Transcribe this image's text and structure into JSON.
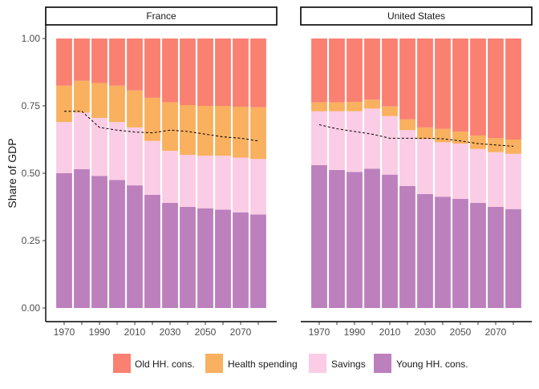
{
  "chart_data": {
    "type": "bar",
    "stacked": true,
    "facets": [
      "France",
      "United States"
    ],
    "ylabel": "Share of GDP",
    "xlabel": "",
    "ylim": [
      0,
      1
    ],
    "y_ticks": [
      "0.00",
      "0.25",
      "0.50",
      "0.75",
      "1.00"
    ],
    "y_tick_values": [
      0,
      0.25,
      0.5,
      0.75,
      1.0
    ],
    "x_ticks": [
      "1970",
      "1990",
      "2010",
      "2030",
      "2050",
      "2070"
    ],
    "x_tick_values": [
      1970,
      1990,
      2010,
      2030,
      2050,
      2070
    ],
    "x_minor_ticks": [
      1980,
      2000,
      2020,
      2040,
      2060,
      2080
    ],
    "categories": [
      1970,
      1980,
      1990,
      2000,
      2010,
      2020,
      2030,
      2040,
      2050,
      2060,
      2070,
      2080
    ],
    "legend_position": "bottom",
    "grid": false,
    "legend": [
      {
        "name": "Old HH. cons.",
        "color": "#FA8072"
      },
      {
        "name": "Health spending",
        "color": "#F9B05F"
      },
      {
        "name": "Savings",
        "color": "#FBCCE5"
      },
      {
        "name": "Young HH. cons.",
        "color": "#BC80BD"
      }
    ],
    "panels": [
      {
        "name": "France",
        "stack_tops": {
          "Young HH. cons.": [
            0.5,
            0.515,
            0.49,
            0.475,
            0.455,
            0.42,
            0.39,
            0.375,
            0.37,
            0.365,
            0.355,
            0.347
          ],
          "Savings": [
            0.69,
            0.725,
            0.705,
            0.69,
            0.67,
            0.62,
            0.583,
            0.568,
            0.565,
            0.565,
            0.558,
            0.553
          ],
          "Health spending": [
            0.825,
            0.843,
            0.835,
            0.825,
            0.807,
            0.78,
            0.763,
            0.753,
            0.75,
            0.75,
            0.747,
            0.745
          ],
          "Old HH. cons.": [
            1,
            1,
            1,
            1,
            1,
            1,
            1,
            1,
            1,
            1,
            1,
            1
          ]
        },
        "dashed_line": [
          0.73,
          0.73,
          0.67,
          0.66,
          0.653,
          0.65,
          0.66,
          0.655,
          0.645,
          0.635,
          0.63,
          0.62
        ]
      },
      {
        "name": "United States",
        "stack_tops": {
          "Young HH. cons.": [
            0.53,
            0.512,
            0.505,
            0.517,
            0.495,
            0.453,
            0.423,
            0.413,
            0.405,
            0.39,
            0.375,
            0.367
          ],
          "Savings": [
            0.73,
            0.73,
            0.73,
            0.74,
            0.712,
            0.66,
            0.627,
            0.615,
            0.61,
            0.59,
            0.578,
            0.572
          ],
          "Health spending": [
            0.763,
            0.763,
            0.765,
            0.773,
            0.748,
            0.7,
            0.67,
            0.665,
            0.655,
            0.64,
            0.63,
            0.625
          ],
          "Old HH. cons.": [
            1,
            1,
            1,
            1,
            1,
            1,
            1,
            1,
            1,
            1,
            1,
            1
          ]
        },
        "dashed_line": [
          0.68,
          0.665,
          0.655,
          0.645,
          0.63,
          0.63,
          0.63,
          0.628,
          0.62,
          0.61,
          0.605,
          0.6
        ]
      }
    ]
  }
}
